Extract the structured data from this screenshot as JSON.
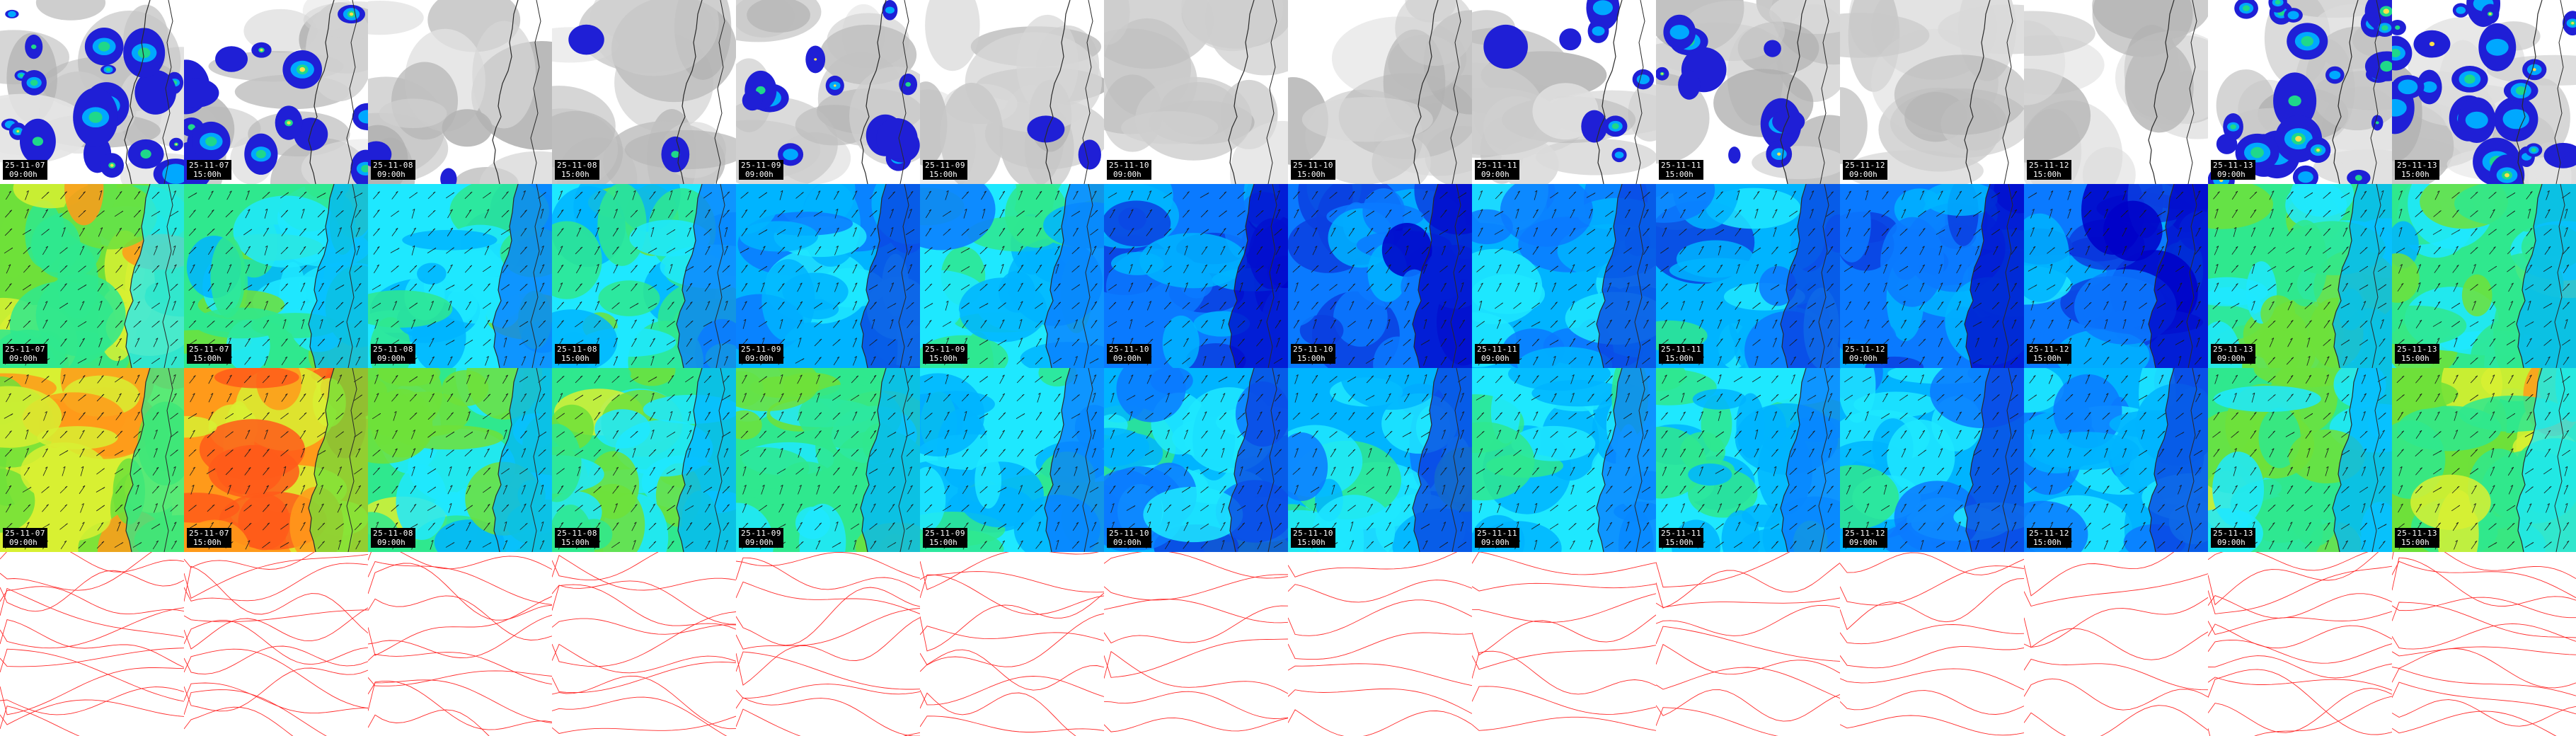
{
  "page": {
    "title": ""
  },
  "palette": {
    "precip": [
      "#1f1fd6",
      "#1a66ff",
      "#00a8ff",
      "#1fd88a",
      "#5ee04a",
      "#ffe14a",
      "#ff3b2a"
    ],
    "wind": [
      "#0000c8",
      "#0a3fe0",
      "#0a7aff",
      "#00b4ff",
      "#1ee8ff",
      "#2fe88e",
      "#6ee03a",
      "#d8f032",
      "#ff9a1a",
      "#ff5a1a"
    ],
    "cloud": "#b4b4b4",
    "isobar": "#ff2a2a",
    "coast": "#2a2a2a"
  },
  "rows": [
    {
      "id": "precip-clouds"
    },
    {
      "id": "wind-10m"
    },
    {
      "id": "wind-gust"
    },
    {
      "id": "pressure"
    }
  ],
  "frames": [
    {
      "date": "25-11-07",
      "time": "09:00h",
      "wind": 0.62,
      "gust": 0.82,
      "precip": 0.55
    },
    {
      "date": "25-11-07",
      "time": "15:00h",
      "wind": 0.6,
      "gust": 0.86,
      "precip": 0.4
    },
    {
      "date": "25-11-08",
      "time": "09:00h",
      "wind": 0.48,
      "gust": 0.58,
      "precip": 0.05
    },
    {
      "date": "25-11-08",
      "time": "15:00h",
      "wind": 0.45,
      "gust": 0.5,
      "precip": 0.05
    },
    {
      "date": "25-11-09",
      "time": "09:00h",
      "wind": 0.38,
      "gust": 0.52,
      "precip": 0.3
    },
    {
      "date": "25-11-09",
      "time": "15:00h",
      "wind": 0.4,
      "gust": 0.45,
      "precip": 0.05
    },
    {
      "date": "25-11-10",
      "time": "09:00h",
      "wind": 0.25,
      "gust": 0.35,
      "precip": 0.0
    },
    {
      "date": "25-11-10",
      "time": "15:00h",
      "wind": 0.22,
      "gust": 0.3,
      "precip": 0.0
    },
    {
      "date": "25-11-11",
      "time": "09:00h",
      "wind": 0.3,
      "gust": 0.45,
      "precip": 0.2
    },
    {
      "date": "25-11-11",
      "time": "15:00h",
      "wind": 0.35,
      "gust": 0.48,
      "precip": 0.25
    },
    {
      "date": "25-11-12",
      "time": "09:00h",
      "wind": 0.25,
      "gust": 0.32,
      "precip": 0.0
    },
    {
      "date": "25-11-12",
      "time": "15:00h",
      "wind": 0.2,
      "gust": 0.28,
      "precip": 0.0
    },
    {
      "date": "25-11-13",
      "time": "09:00h",
      "wind": 0.5,
      "gust": 0.6,
      "precip": 0.6
    },
    {
      "date": "25-11-13",
      "time": "15:00h",
      "wind": 0.52,
      "gust": 0.62,
      "precip": 0.55
    }
  ]
}
